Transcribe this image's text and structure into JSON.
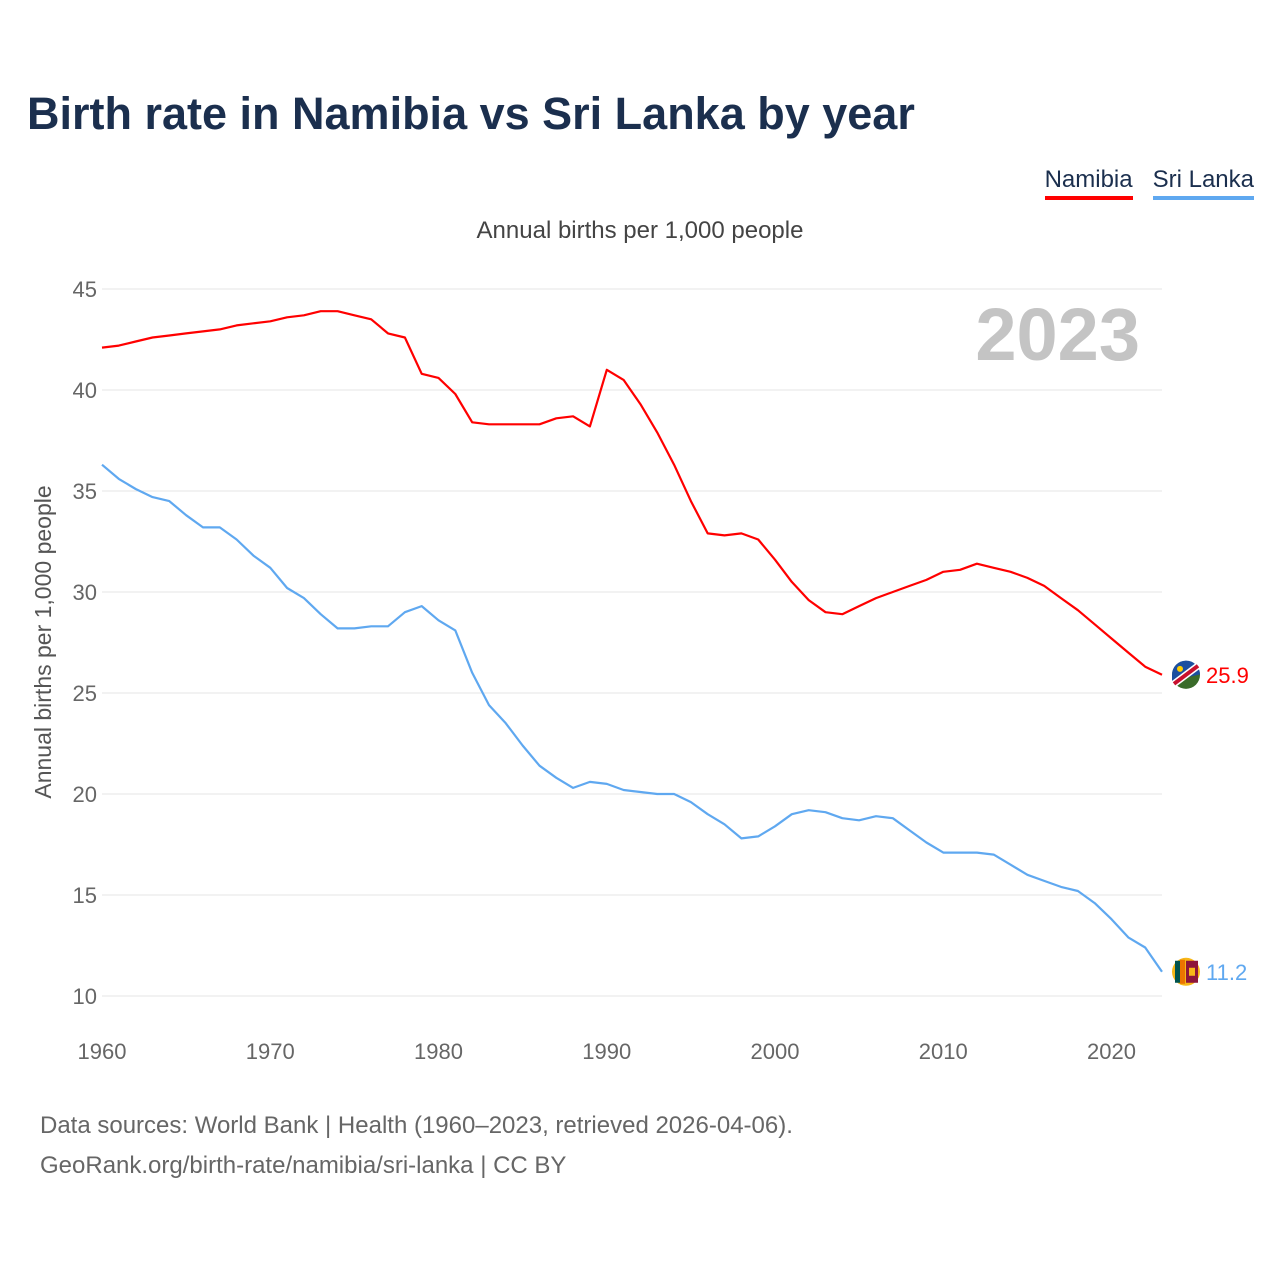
{
  "title": "Birth rate in Namibia vs Sri Lanka by year",
  "footer": {
    "line1": "Data sources: World Bank | Health (1960–2023, retrieved 2026-04-06).",
    "line2": "GeoRank.org/birth-rate/namibia/sri-lanka | CC BY"
  },
  "chart_data": {
    "type": "line",
    "title": "Birth rate in Namibia vs Sri Lanka by year",
    "subtitle": "Annual births per 1,000 people",
    "ylabel": "Annual births per 1,000 people",
    "xlabel": "",
    "year_label": "2023",
    "xlim": [
      1960,
      2023
    ],
    "ylim": [
      10,
      45
    ],
    "xticks": [
      1960,
      1970,
      1980,
      1990,
      2000,
      2010,
      2020
    ],
    "yticks": [
      10,
      15,
      20,
      25,
      30,
      35,
      40,
      45
    ],
    "grid": true,
    "legend_position": "top-right",
    "x_start": 1960,
    "series": [
      {
        "name": "Namibia",
        "color": "#ff0000",
        "end_label": "25.9",
        "values": [
          42.1,
          42.2,
          42.4,
          42.6,
          42.7,
          42.8,
          42.9,
          43.0,
          43.2,
          43.3,
          43.4,
          43.6,
          43.7,
          43.9,
          43.9,
          43.7,
          43.5,
          42.8,
          42.6,
          40.8,
          40.6,
          39.8,
          38.4,
          38.3,
          38.3,
          38.3,
          38.3,
          38.6,
          38.7,
          38.2,
          41.0,
          40.5,
          39.3,
          37.9,
          36.3,
          34.5,
          32.9,
          32.8,
          32.9,
          32.6,
          31.6,
          30.5,
          29.6,
          29.0,
          28.9,
          29.3,
          29.7,
          30.0,
          30.3,
          30.6,
          31.0,
          31.1,
          31.4,
          31.2,
          31.0,
          30.7,
          30.3,
          29.7,
          29.1,
          28.4,
          27.7,
          27.0,
          26.3,
          25.9
        ]
      },
      {
        "name": "Sri Lanka",
        "color": "#5fa8f0",
        "end_label": "11.2",
        "values": [
          36.3,
          35.6,
          35.1,
          34.7,
          34.5,
          33.8,
          33.2,
          33.2,
          32.6,
          31.8,
          31.2,
          30.2,
          29.7,
          28.9,
          28.2,
          28.2,
          28.3,
          28.3,
          29.0,
          29.3,
          28.6,
          28.1,
          26.0,
          24.4,
          23.5,
          22.4,
          21.4,
          20.8,
          20.3,
          20.6,
          20.5,
          20.2,
          20.1,
          20.0,
          20.0,
          19.6,
          19.0,
          18.5,
          17.8,
          17.9,
          18.4,
          19.0,
          19.2,
          19.1,
          18.8,
          18.7,
          18.9,
          18.8,
          18.2,
          17.6,
          17.1,
          17.1,
          17.1,
          17.0,
          16.5,
          16.0,
          15.7,
          15.4,
          15.2,
          14.6,
          13.8,
          12.9,
          12.4,
          11.2
        ]
      }
    ]
  }
}
